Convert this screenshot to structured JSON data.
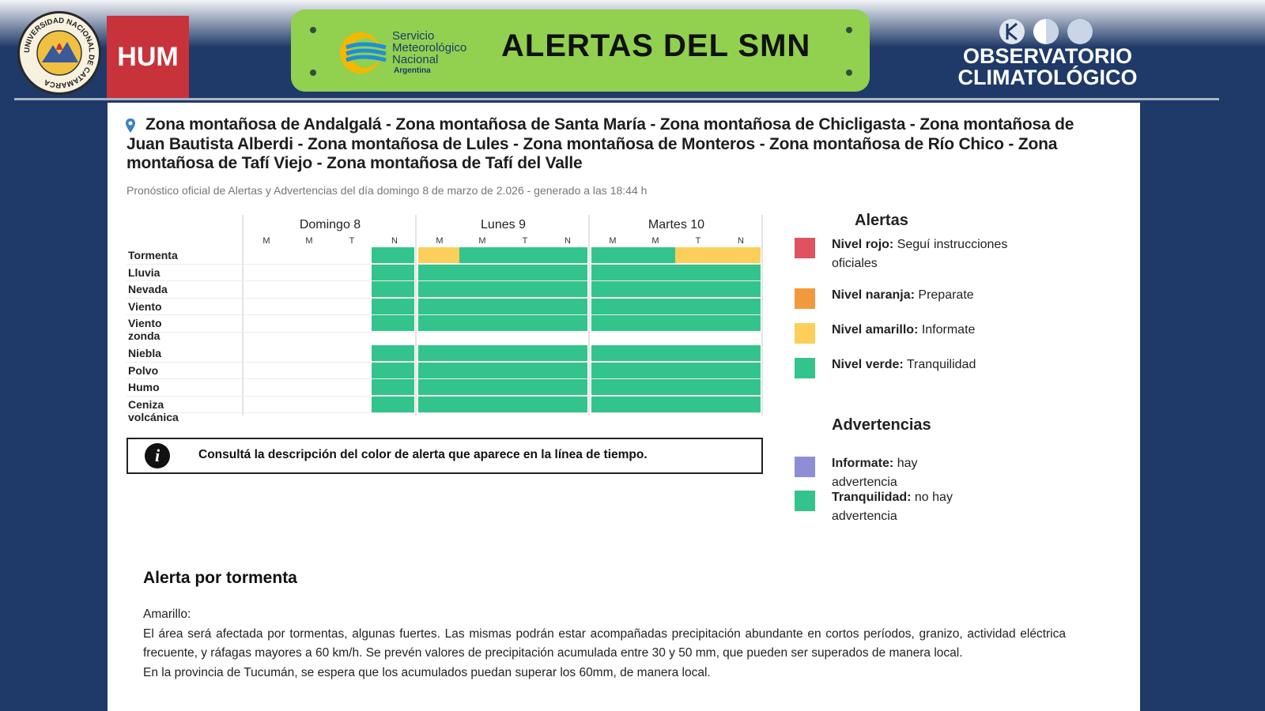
{
  "header": {
    "seal_text": "UNIVERSIDAD NACIONAL DE CATAMARCA",
    "faculty": "HUM",
    "smn_name": "Servicio Meteorológico Nacional",
    "smn_country": "Argentina",
    "title": "ALERTAS DEL SMN",
    "observatory": [
      "OBSERVATORIO",
      "CLIMATOLÓGICO"
    ]
  },
  "report": {
    "location": "Zona montañosa de Andalgalá - Zona montañosa de Santa María - Zona montañosa de Chicligasta - Zona montañosa de Juan Bautista Alberdi - Zona montañosa de Lules - Zona montañosa de Monteros - Zona montañosa de Río Chico - Zona montañosa de Tafí Viejo - Zona montañosa de Tafí del Valle",
    "subtitle": "Pronóstico oficial de Alertas y Advertencias del día domingo 8 de marzo de 2.026 - generado a las 18:44 h",
    "timeline": {
      "days": [
        {
          "label": "Domingo 8",
          "periods": [
            "M",
            "M",
            "T",
            "N"
          ]
        },
        {
          "label": "Lunes 9",
          "periods": [
            "M",
            "M",
            "T",
            "N"
          ]
        },
        {
          "label": "Martes 10",
          "periods": [
            "M",
            "M",
            "T",
            "N"
          ]
        }
      ],
      "rows": [
        {
          "label": "Tormenta",
          "cells": [
            null,
            null,
            null,
            "#33c48d",
            "#fbcf5a",
            "#33c48d",
            "#33c48d",
            "#33c48d",
            "#33c48d",
            "#33c48d",
            "#fbcf5a",
            "#fbcf5a"
          ]
        },
        {
          "label": "Lluvia",
          "cells": [
            null,
            null,
            null,
            "#33c48d",
            "#33c48d",
            "#33c48d",
            "#33c48d",
            "#33c48d",
            "#33c48d",
            "#33c48d",
            "#33c48d",
            "#33c48d"
          ]
        },
        {
          "label": "Nevada",
          "cells": [
            null,
            null,
            null,
            "#33c48d",
            "#33c48d",
            "#33c48d",
            "#33c48d",
            "#33c48d",
            "#33c48d",
            "#33c48d",
            "#33c48d",
            "#33c48d"
          ]
        },
        {
          "label": "Viento",
          "cells": [
            null,
            null,
            null,
            "#33c48d",
            "#33c48d",
            "#33c48d",
            "#33c48d",
            "#33c48d",
            "#33c48d",
            "#33c48d",
            "#33c48d",
            "#33c48d"
          ]
        },
        {
          "label": "Viento zonda",
          "cells": [
            null,
            null,
            null,
            "#33c48d",
            "#33c48d",
            "#33c48d",
            "#33c48d",
            "#33c48d",
            "#33c48d",
            "#33c48d",
            "#33c48d",
            "#33c48d"
          ]
        },
        {
          "label": "Niebla",
          "cells": [
            null,
            null,
            null,
            "#33c48d",
            "#33c48d",
            "#33c48d",
            "#33c48d",
            "#33c48d",
            "#33c48d",
            "#33c48d",
            "#33c48d",
            "#33c48d"
          ]
        },
        {
          "label": "Polvo",
          "cells": [
            null,
            null,
            null,
            "#33c48d",
            "#33c48d",
            "#33c48d",
            "#33c48d",
            "#33c48d",
            "#33c48d",
            "#33c48d",
            "#33c48d",
            "#33c48d"
          ]
        },
        {
          "label": "Humo",
          "cells": [
            null,
            null,
            null,
            "#33c48d",
            "#33c48d",
            "#33c48d",
            "#33c48d",
            "#33c48d",
            "#33c48d",
            "#33c48d",
            "#33c48d",
            "#33c48d"
          ]
        },
        {
          "label": "Ceniza volcánica",
          "cells": [
            null,
            null,
            null,
            "#33c48d",
            "#33c48d",
            "#33c48d",
            "#33c48d",
            "#33c48d",
            "#33c48d",
            "#33c48d",
            "#33c48d",
            "#33c48d"
          ]
        }
      ]
    },
    "info_note": "Consultá la descripción del color de alerta que aparece en la línea de tiempo.",
    "alerts_legend": {
      "title": "Alertas",
      "items": [
        {
          "label": "Nivel rojo:",
          "text": "Seguí instrucciones oficiales",
          "color": "#e0525f"
        },
        {
          "label": "Nivel naranja:",
          "text": "Preparate",
          "color": "#f29a3b"
        },
        {
          "label": "Nivel amarillo:",
          "text": "Informate",
          "color": "#fbcf5a"
        },
        {
          "label": "Nivel verde:",
          "text": "Tranquilidad",
          "color": "#33c48d"
        }
      ]
    },
    "warnings_legend": {
      "title": "Advertencias",
      "items": [
        {
          "label": "Informate:",
          "text": "hay advertencia",
          "color": "#8e8ed6"
        },
        {
          "label": "Tranquilidad:",
          "text": "no hay advertencia",
          "color": "#33c48d"
        }
      ]
    },
    "section": {
      "title": "Alerta por tormenta",
      "paragraphs": [
        "Amarillo:",
        "El área será afectada por tormentas, algunas fuertes. Las mismas podrán estar acompañadas precipitación abundante en cortos períodos, granizo, actividad eléctrica frecuente, y ráfagas mayores a 60 km/h. Se prevén valores de precipitación acumulada entre 30 y 50 mm, que pueden ser superados de manera local.",
        "En la provincia de Tucumán, se espera que los acumulados puedan superar los 60mm, de manera local."
      ]
    }
  }
}
